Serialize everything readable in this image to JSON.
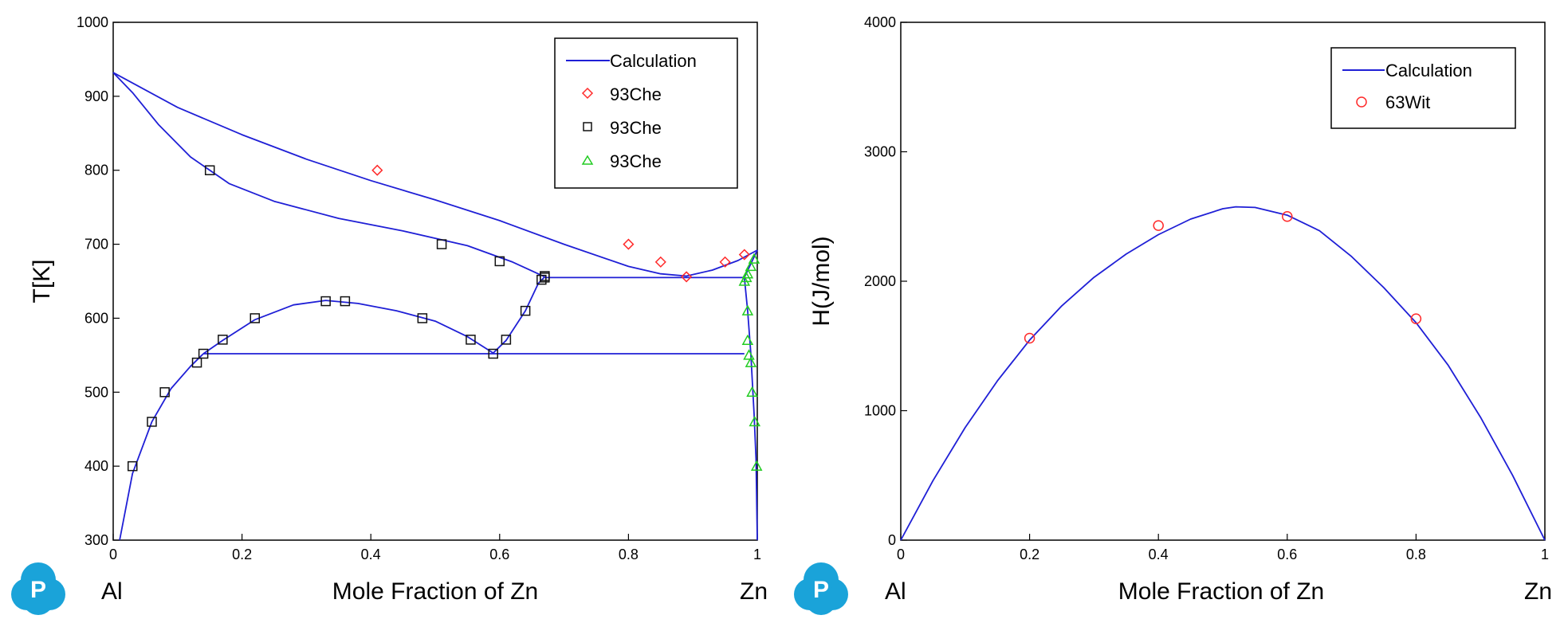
{
  "chart_data": [
    {
      "type": "line",
      "title": "",
      "xlabel": "Mole Fraction of Zn",
      "ylabel": "T[K]",
      "xlim": [
        0,
        1
      ],
      "ylim": [
        300,
        1000
      ],
      "x_ticks": [
        "0",
        "0.2",
        "0.4",
        "0.6",
        "0.8",
        "1"
      ],
      "y_ticks": [
        "300",
        "400",
        "500",
        "600",
        "700",
        "800",
        "900",
        "1000"
      ],
      "left_end_label": "Al",
      "right_end_label": "Zn",
      "legend_position": "top-right",
      "legend": [
        "Calculation",
        "93Che",
        "93Che",
        "93Che"
      ],
      "series": [
        {
          "name": "Calculation",
          "kind": "line",
          "color": "#1f1fd6",
          "segments": [
            [
              [
                0,
                932
              ],
              [
                0.1,
                885
              ],
              [
                0.2,
                848
              ],
              [
                0.3,
                815
              ],
              [
                0.4,
                786
              ],
              [
                0.5,
                760
              ],
              [
                0.6,
                732
              ],
              [
                0.7,
                700
              ],
              [
                0.8,
                670
              ],
              [
                0.85,
                660
              ],
              [
                0.89,
                657
              ],
              [
                0.93,
                665
              ],
              [
                0.97,
                678
              ],
              [
                1.0,
                692
              ]
            ],
            [
              [
                0,
                932
              ],
              [
                0.03,
                905
              ],
              [
                0.07,
                862
              ],
              [
                0.12,
                818
              ],
              [
                0.18,
                782
              ],
              [
                0.25,
                758
              ],
              [
                0.35,
                735
              ],
              [
                0.45,
                718
              ],
              [
                0.55,
                698
              ],
              [
                0.62,
                676
              ],
              [
                0.67,
                656
              ]
            ],
            [
              [
                0.67,
                655
              ],
              [
                0.98,
                655
              ]
            ],
            [
              [
                0.98,
                655
              ],
              [
                0.987,
                668
              ],
              [
                1.0,
                692
              ]
            ],
            [
              [
                0.98,
                655
              ],
              [
                0.985,
                610
              ],
              [
                0.99,
                552
              ],
              [
                0.995,
                470
              ],
              [
                0.998,
                410
              ],
              [
                1.0,
                300
              ]
            ],
            [
              [
                0.01,
                300
              ],
              [
                0.03,
                390
              ],
              [
                0.06,
                460
              ],
              [
                0.09,
                505
              ],
              [
                0.12,
                535
              ],
              [
                0.14,
                552
              ]
            ],
            [
              [
                0.14,
                552
              ],
              [
                0.98,
                552
              ]
            ],
            [
              [
                0.14,
                552
              ],
              [
                0.17,
                570
              ],
              [
                0.22,
                598
              ],
              [
                0.28,
                618
              ],
              [
                0.33,
                624
              ],
              [
                0.38,
                620
              ],
              [
                0.44,
                610
              ],
              [
                0.5,
                596
              ],
              [
                0.55,
                575
              ],
              [
                0.59,
                553
              ]
            ],
            [
              [
                0.59,
                553
              ],
              [
                0.61,
                570
              ],
              [
                0.64,
                610
              ],
              [
                0.66,
                647
              ],
              [
                0.67,
                656
              ]
            ]
          ]
        },
        {
          "name": "93Che",
          "kind": "marker",
          "marker": "diamond",
          "color": "#ff2a2a",
          "x": [
            0.41,
            0.8,
            0.85,
            0.89,
            0.95,
            0.98
          ],
          "y": [
            800,
            700,
            676,
            656,
            676,
            686
          ]
        },
        {
          "name": "93Che",
          "kind": "marker",
          "marker": "square",
          "color": "#111111",
          "x": [
            0.15,
            0.51,
            0.6,
            0.665,
            0.67,
            0.67,
            0.03,
            0.06,
            0.08,
            0.13,
            0.14,
            0.17,
            0.22,
            0.33,
            0.36,
            0.48,
            0.555,
            0.59,
            0.61,
            0.64
          ],
          "y": [
            800,
            700,
            677,
            652,
            655,
            657,
            400,
            460,
            500,
            540,
            552,
            571,
            600,
            623,
            623,
            600,
            571,
            552,
            571,
            610
          ]
        },
        {
          "name": "93Che",
          "kind": "marker",
          "marker": "triangle",
          "color": "#22cc22",
          "x": [
            0.98,
            0.983,
            0.985,
            0.99,
            0.995,
            0.985,
            0.985,
            0.987,
            0.99,
            0.992,
            0.996,
            0.999
          ],
          "y": [
            650,
            655,
            660,
            670,
            680,
            610,
            570,
            550,
            540,
            500,
            460,
            400
          ]
        }
      ]
    },
    {
      "type": "line",
      "title": "",
      "xlabel": "Mole Fraction of Zn",
      "ylabel": "H(J/mol)",
      "xlim": [
        0,
        1
      ],
      "ylim": [
        0,
        4000
      ],
      "x_ticks": [
        "0",
        "0.2",
        "0.4",
        "0.6",
        "0.8",
        "1"
      ],
      "y_ticks": [
        "0",
        "1000",
        "2000",
        "3000",
        "4000"
      ],
      "left_end_label": "Al",
      "right_end_label": "Zn",
      "legend_position": "top-right",
      "legend": [
        "Calculation",
        "63Wit"
      ],
      "series": [
        {
          "name": "Calculation",
          "kind": "line",
          "color": "#1f1fd6",
          "segments": [
            [
              [
                0,
                0
              ],
              [
                0.05,
                460
              ],
              [
                0.1,
                870
              ],
              [
                0.15,
                1230
              ],
              [
                0.2,
                1545
              ],
              [
                0.25,
                1810
              ],
              [
                0.3,
                2030
              ],
              [
                0.35,
                2210
              ],
              [
                0.4,
                2360
              ],
              [
                0.45,
                2480
              ],
              [
                0.5,
                2560
              ],
              [
                0.52,
                2575
              ],
              [
                0.55,
                2570
              ],
              [
                0.6,
                2510
              ],
              [
                0.65,
                2390
              ],
              [
                0.7,
                2190
              ],
              [
                0.75,
                1950
              ],
              [
                0.8,
                1680
              ],
              [
                0.85,
                1350
              ],
              [
                0.9,
                950
              ],
              [
                0.95,
                500
              ],
              [
                1.0,
                0
              ]
            ]
          ]
        },
        {
          "name": "63Wit",
          "kind": "marker",
          "marker": "circle",
          "color": "#ff2a2a",
          "x": [
            0.2,
            0.4,
            0.6,
            0.8
          ],
          "y": [
            1560,
            2430,
            2500,
            1710
          ]
        }
      ]
    }
  ]
}
